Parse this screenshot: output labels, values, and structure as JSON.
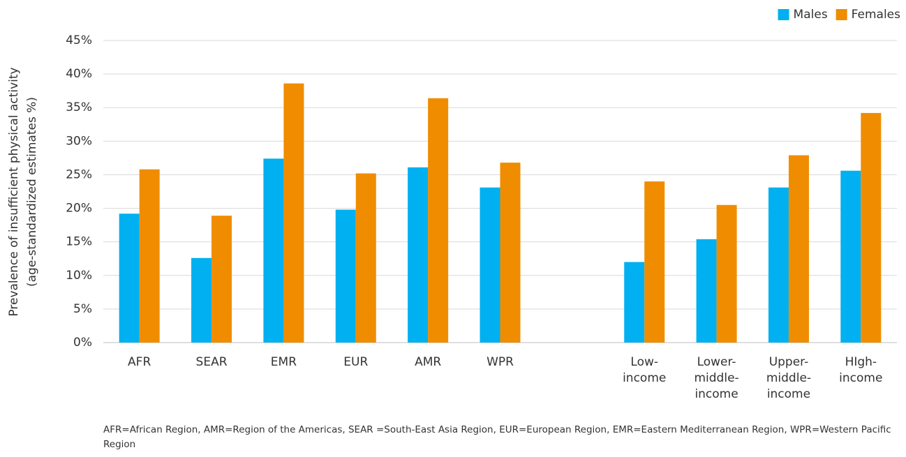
{
  "chart_data": {
    "type": "bar",
    "y_label": [
      "Prevalence of insufficient physical activity",
      "(age-standardized estimates %)"
    ],
    "categories": [
      "AFR",
      "SEAR",
      "EMR",
      "EUR",
      "AMR",
      "WPR",
      null,
      "Low-\nincome",
      "Lower-\nmiddle-\nincome",
      "Upper-\nmiddle-\nincome",
      "HIgh-\nincome"
    ],
    "series": [
      {
        "name": "Males",
        "color": "#00b0f0",
        "values": [
          19.2,
          12.6,
          27.4,
          19.8,
          26.1,
          23.1,
          null,
          12.0,
          15.4,
          23.1,
          25.6
        ]
      },
      {
        "name": "Females",
        "color": "#f08c00",
        "values": [
          25.8,
          18.9,
          38.6,
          25.2,
          36.4,
          26.8,
          null,
          24.0,
          20.5,
          27.9,
          34.2
        ]
      }
    ],
    "ylim": [
      0,
      45
    ],
    "yticks": [
      {
        "value": 0,
        "label": "0%"
      },
      {
        "value": 5,
        "label": "5%"
      },
      {
        "value": 10,
        "label": "10%"
      },
      {
        "value": 15,
        "label": "15%"
      },
      {
        "value": 20,
        "label": "20%"
      },
      {
        "value": 25,
        "label": "25%"
      },
      {
        "value": 30,
        "label": "30%"
      },
      {
        "value": 35,
        "label": "35%"
      },
      {
        "value": 40,
        "label": "40%"
      },
      {
        "value": 45,
        "label": "45%"
      }
    ],
    "grid": true,
    "legend": "top-right",
    "footnote": "AFR=African Region, AMR=Region of the Americas, SEAR =South-East Asia Region, EUR=European Region, EMR=Eastern Mediterranean Region, WPR=Western Pacific Region"
  }
}
